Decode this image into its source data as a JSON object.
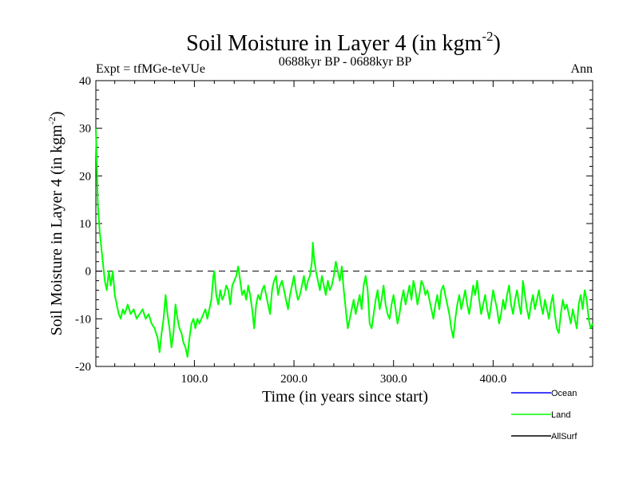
{
  "chart_data": {
    "type": "line",
    "title": "Soil Moisture in Layer 4 (in kgm",
    "title_sup": "-2",
    "title_close": ")",
    "subtitle_left": "Expt = tfMGe-teVUe",
    "subtitle_center": "0688kyr BP - 0688kyr BP",
    "subtitle_right": "Ann",
    "xlabel": "Time (in years since start)",
    "ylabel": "Soil Moisture in Layer 4 (in kgm",
    "ylabel_sup": "-2",
    "ylabel_close": ")",
    "xlim": [
      1,
      500
    ],
    "ylim": [
      -20,
      40
    ],
    "x_ticks": [
      100,
      200,
      300,
      400
    ],
    "x_tick_labels": [
      "100.0",
      "200.0",
      "300.0",
      "400.0"
    ],
    "y_ticks": [
      -20,
      -10,
      0,
      10,
      20,
      30,
      40
    ],
    "y_tick_labels": [
      "-20",
      "-10",
      "0",
      "10",
      "20",
      "30",
      "40"
    ],
    "reference_line": 0,
    "legend": [
      {
        "name": "Ocean",
        "color": "#0000ff"
      },
      {
        "name": "Land",
        "color": "#00ff00"
      },
      {
        "name": "AllSurf",
        "color": "#000000"
      }
    ],
    "series": [
      {
        "name": "Land",
        "color": "#00ff00",
        "points": [
          [
            1,
            30
          ],
          [
            3,
            14
          ],
          [
            5,
            8
          ],
          [
            8,
            2
          ],
          [
            10,
            -2
          ],
          [
            12,
            -4
          ],
          [
            14,
            0
          ],
          [
            16,
            -3
          ],
          [
            18,
            0
          ],
          [
            20,
            -5
          ],
          [
            22,
            -7
          ],
          [
            24,
            -9
          ],
          [
            26,
            -10
          ],
          [
            28,
            -8
          ],
          [
            30,
            -9
          ],
          [
            33,
            -7
          ],
          [
            36,
            -9
          ],
          [
            39,
            -8
          ],
          [
            42,
            -10
          ],
          [
            45,
            -9
          ],
          [
            48,
            -8
          ],
          [
            51,
            -10
          ],
          [
            54,
            -9
          ],
          [
            57,
            -11
          ],
          [
            60,
            -12
          ],
          [
            63,
            -14
          ],
          [
            65,
            -17
          ],
          [
            67,
            -13
          ],
          [
            69,
            -10
          ],
          [
            71,
            -5
          ],
          [
            73,
            -9
          ],
          [
            75,
            -12
          ],
          [
            77,
            -16
          ],
          [
            79,
            -13
          ],
          [
            81,
            -7
          ],
          [
            83,
            -10
          ],
          [
            85,
            -12
          ],
          [
            87,
            -13
          ],
          [
            89,
            -15
          ],
          [
            91,
            -16
          ],
          [
            93,
            -18
          ],
          [
            95,
            -14
          ],
          [
            97,
            -11
          ],
          [
            99,
            -10
          ],
          [
            101,
            -12
          ],
          [
            103,
            -10
          ],
          [
            105,
            -11
          ],
          [
            107,
            -10
          ],
          [
            109,
            -9
          ],
          [
            111,
            -8
          ],
          [
            113,
            -10
          ],
          [
            115,
            -8
          ],
          [
            117,
            -6
          ],
          [
            119,
            -1
          ],
          [
            120,
            0
          ],
          [
            122,
            -5
          ],
          [
            124,
            -7
          ],
          [
            126,
            -4
          ],
          [
            128,
            -6
          ],
          [
            130,
            -5
          ],
          [
            132,
            -3
          ],
          [
            134,
            -4
          ],
          [
            136,
            -7
          ],
          [
            138,
            -3
          ],
          [
            140,
            -2
          ],
          [
            142,
            -1
          ],
          [
            144,
            1
          ],
          [
            146,
            -2
          ],
          [
            148,
            -5
          ],
          [
            150,
            -4
          ],
          [
            152,
            -6
          ],
          [
            154,
            -3
          ],
          [
            156,
            -5
          ],
          [
            158,
            -8
          ],
          [
            160,
            -12
          ],
          [
            162,
            -7
          ],
          [
            164,
            -5
          ],
          [
            166,
            -6
          ],
          [
            168,
            -4
          ],
          [
            170,
            -3
          ],
          [
            172,
            -5
          ],
          [
            174,
            -7
          ],
          [
            176,
            -9
          ],
          [
            178,
            -4
          ],
          [
            180,
            -2
          ],
          [
            182,
            -1
          ],
          [
            184,
            -5
          ],
          [
            186,
            -3
          ],
          [
            188,
            -2
          ],
          [
            190,
            -4
          ],
          [
            192,
            -6
          ],
          [
            194,
            -8
          ],
          [
            196,
            -5
          ],
          [
            198,
            -3
          ],
          [
            200,
            -1
          ],
          [
            202,
            -4
          ],
          [
            204,
            -6
          ],
          [
            206,
            -5
          ],
          [
            208,
            -3
          ],
          [
            210,
            -1
          ],
          [
            212,
            -4
          ],
          [
            214,
            -2
          ],
          [
            216,
            -1
          ],
          [
            218,
            2
          ],
          [
            219,
            6
          ],
          [
            220,
            3
          ],
          [
            222,
            0
          ],
          [
            224,
            -2
          ],
          [
            226,
            -4
          ],
          [
            228,
            -1
          ],
          [
            230,
            -3
          ],
          [
            232,
            -5
          ],
          [
            234,
            -2
          ],
          [
            236,
            -4
          ],
          [
            238,
            -3
          ],
          [
            240,
            -1
          ],
          [
            242,
            2
          ],
          [
            244,
            0
          ],
          [
            246,
            -2
          ],
          [
            248,
            1
          ],
          [
            250,
            -4
          ],
          [
            252,
            -8
          ],
          [
            254,
            -12
          ],
          [
            256,
            -10
          ],
          [
            258,
            -8
          ],
          [
            260,
            -6
          ],
          [
            262,
            -9
          ],
          [
            264,
            -7
          ],
          [
            266,
            -5
          ],
          [
            268,
            -8
          ],
          [
            270,
            -3
          ],
          [
            272,
            -1
          ],
          [
            274,
            -4
          ],
          [
            276,
            -11
          ],
          [
            278,
            -12
          ],
          [
            280,
            -9
          ],
          [
            282,
            -6
          ],
          [
            284,
            -4
          ],
          [
            286,
            -8
          ],
          [
            288,
            -6
          ],
          [
            290,
            -3
          ],
          [
            292,
            -7
          ],
          [
            294,
            -9
          ],
          [
            296,
            -10
          ],
          [
            298,
            -7
          ],
          [
            300,
            -5
          ],
          [
            302,
            -8
          ],
          [
            304,
            -11
          ],
          [
            306,
            -9
          ],
          [
            308,
            -6
          ],
          [
            310,
            -4
          ],
          [
            312,
            -7
          ],
          [
            314,
            -5
          ],
          [
            316,
            -3
          ],
          [
            318,
            -6
          ],
          [
            320,
            -2
          ],
          [
            322,
            -4
          ],
          [
            324,
            -7
          ],
          [
            326,
            -5
          ],
          [
            328,
            -2
          ],
          [
            330,
            -3
          ],
          [
            332,
            -5
          ],
          [
            334,
            -4
          ],
          [
            336,
            -6
          ],
          [
            338,
            -8
          ],
          [
            340,
            -10
          ],
          [
            342,
            -7
          ],
          [
            344,
            -5
          ],
          [
            346,
            -8
          ],
          [
            348,
            -4
          ],
          [
            350,
            -3
          ],
          [
            352,
            -5
          ],
          [
            354,
            -7
          ],
          [
            356,
            -9
          ],
          [
            358,
            -12
          ],
          [
            360,
            -14
          ],
          [
            362,
            -10
          ],
          [
            364,
            -7
          ],
          [
            366,
            -5
          ],
          [
            368,
            -8
          ],
          [
            370,
            -6
          ],
          [
            372,
            -4
          ],
          [
            374,
            -7
          ],
          [
            376,
            -9
          ],
          [
            378,
            -6
          ],
          [
            380,
            -3
          ],
          [
            382,
            -5
          ],
          [
            384,
            -2
          ],
          [
            386,
            -6
          ],
          [
            388,
            -9
          ],
          [
            390,
            -7
          ],
          [
            392,
            -5
          ],
          [
            394,
            -8
          ],
          [
            396,
            -10
          ],
          [
            398,
            -7
          ],
          [
            400,
            -4
          ],
          [
            402,
            -6
          ],
          [
            404,
            -8
          ],
          [
            406,
            -11
          ],
          [
            408,
            -9
          ],
          [
            410,
            -6
          ],
          [
            412,
            -8
          ],
          [
            414,
            -5
          ],
          [
            416,
            -3
          ],
          [
            418,
            -7
          ],
          [
            420,
            -9
          ],
          [
            422,
            -6
          ],
          [
            424,
            -4
          ],
          [
            426,
            -7
          ],
          [
            428,
            -9
          ],
          [
            430,
            -2
          ],
          [
            432,
            -5
          ],
          [
            434,
            -8
          ],
          [
            436,
            -10
          ],
          [
            438,
            -7
          ],
          [
            440,
            -5
          ],
          [
            442,
            -8
          ],
          [
            444,
            -6
          ],
          [
            446,
            -4
          ],
          [
            448,
            -7
          ],
          [
            450,
            -9
          ],
          [
            452,
            -6
          ],
          [
            454,
            -8
          ],
          [
            456,
            -10
          ],
          [
            458,
            -7
          ],
          [
            460,
            -5
          ],
          [
            462,
            -9
          ],
          [
            464,
            -12
          ],
          [
            466,
            -13
          ],
          [
            468,
            -9
          ],
          [
            470,
            -6
          ],
          [
            472,
            -8
          ],
          [
            474,
            -7
          ],
          [
            476,
            -9
          ],
          [
            478,
            -11
          ],
          [
            480,
            -8
          ],
          [
            482,
            -10
          ],
          [
            484,
            -12
          ],
          [
            486,
            -7
          ],
          [
            488,
            -5
          ],
          [
            490,
            -8
          ],
          [
            492,
            -4
          ],
          [
            494,
            -6
          ],
          [
            496,
            -10
          ],
          [
            498,
            -12
          ],
          [
            500,
            -11
          ]
        ]
      }
    ]
  }
}
